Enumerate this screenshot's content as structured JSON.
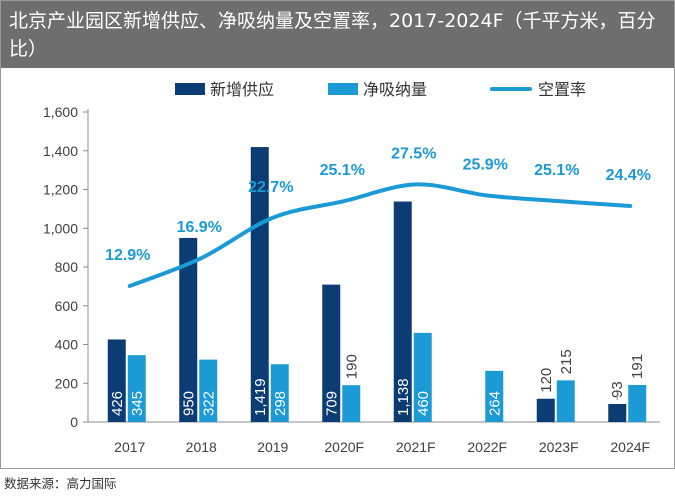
{
  "title": "北京产业园区新增供应、净吸纳量及空置率，2017-2024F（千平方米，百分比）",
  "source": "数据来源：高力国际",
  "chart_data": {
    "type": "bar",
    "categories": [
      "2017",
      "2018",
      "2019",
      "2020F",
      "2021F",
      "2022F",
      "2023F",
      "2024F"
    ],
    "series": [
      {
        "name": "新增供应",
        "type": "bar",
        "color": "#0b3c73",
        "values": [
          426,
          950,
          1419,
          709,
          1138,
          null,
          120,
          93
        ],
        "labels": [
          "426",
          "950",
          "1,419",
          "709",
          "1,138",
          "",
          "120",
          "93"
        ]
      },
      {
        "name": "净吸纳量",
        "type": "bar",
        "color": "#1c9ad6",
        "values": [
          345,
          322,
          298,
          190,
          460,
          264,
          215,
          191
        ],
        "labels": [
          "345",
          "322",
          "298",
          "190",
          "460",
          "264",
          "215",
          "191"
        ]
      },
      {
        "name": "空置率",
        "type": "line",
        "color": "#1c9ad6",
        "values": [
          12.9,
          16.9,
          22.7,
          25.1,
          27.5,
          25.9,
          25.1,
          24.4
        ],
        "labels": [
          "12.9%",
          "16.9%",
          "22.7%",
          "25.1%",
          "27.5%",
          "25.9%",
          "25.1%",
          "24.4%"
        ]
      }
    ],
    "yticks": [
      "0",
      "200",
      "400",
      "600",
      "800",
      "1,000",
      "1,200",
      "1,400",
      "1,600"
    ],
    "ylim": [
      0,
      1600
    ],
    "legend_position": "top",
    "grid": false
  }
}
